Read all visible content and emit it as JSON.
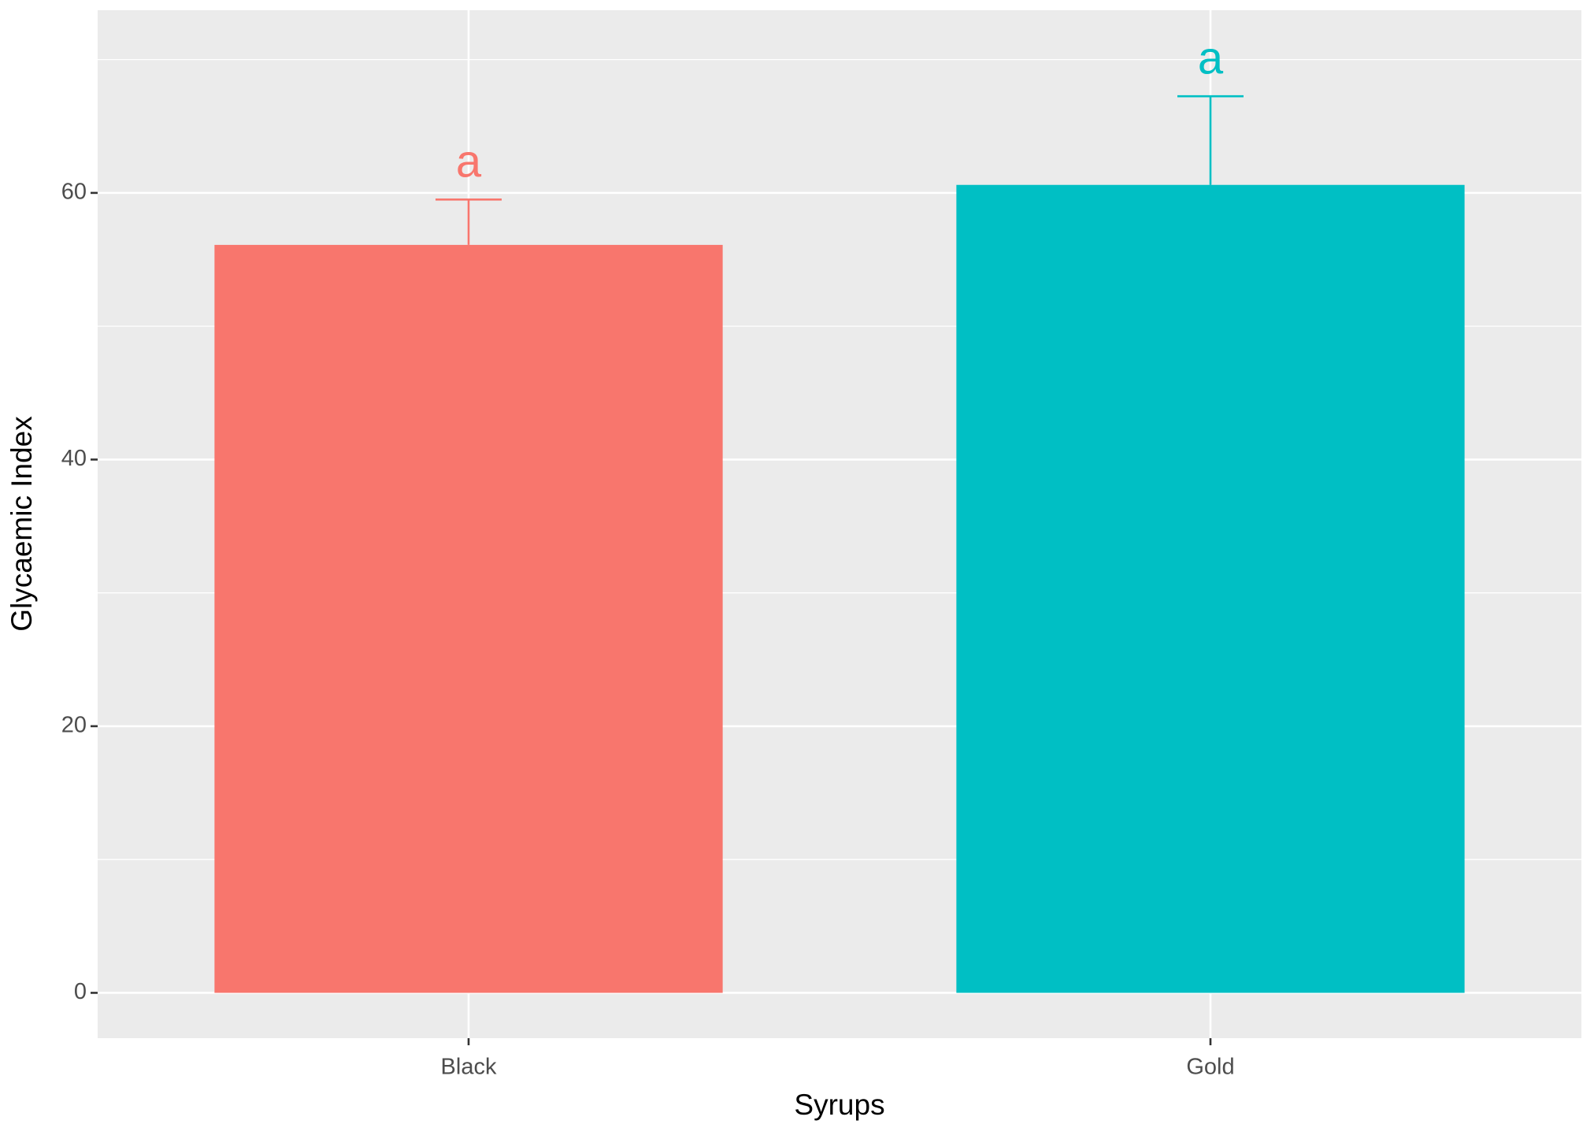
{
  "chart_data": {
    "type": "bar",
    "x_label": "Syrups",
    "y_label": "Glycaemic Index",
    "categories": [
      "Black",
      "Gold"
    ],
    "values": [
      56.1,
      60.6
    ],
    "errors": [
      3.4,
      6.65
    ],
    "labels": [
      "a",
      "a"
    ],
    "colors": [
      "#F8766D",
      "#00BFC4"
    ],
    "ylim": [
      -3.4,
      73.7
    ],
    "yticks": [
      0,
      20,
      40,
      60
    ],
    "y_minor_ticks": [
      10,
      30,
      50,
      70
    ],
    "grid": true
  }
}
